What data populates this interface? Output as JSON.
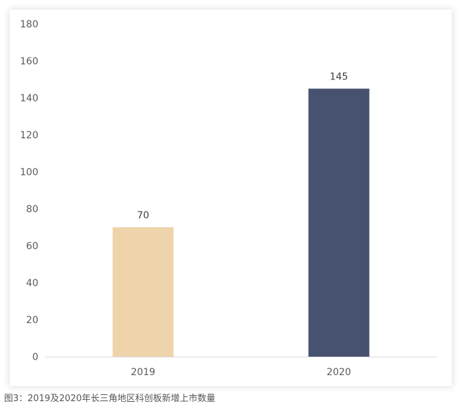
{
  "chart_data": {
    "type": "bar",
    "categories": [
      "2019",
      "2020"
    ],
    "values": [
      70,
      145
    ],
    "bar_colors": [
      "#EFD3AA",
      "#46526F"
    ],
    "data_labels": [
      "70",
      "145"
    ],
    "title": "",
    "xlabel": "",
    "ylabel": "",
    "ylim": [
      0,
      180
    ],
    "yticks": [
      "0",
      "20",
      "40",
      "60",
      "80",
      "100",
      "120",
      "140",
      "160",
      "180"
    ],
    "grid": false,
    "legend": "none"
  },
  "caption": "图3：2019及2020年长三角地区科创板新增上市数量",
  "colors": {
    "axis": "#D9D9D9",
    "tick_text": "#595959",
    "label_text": "#404040"
  }
}
